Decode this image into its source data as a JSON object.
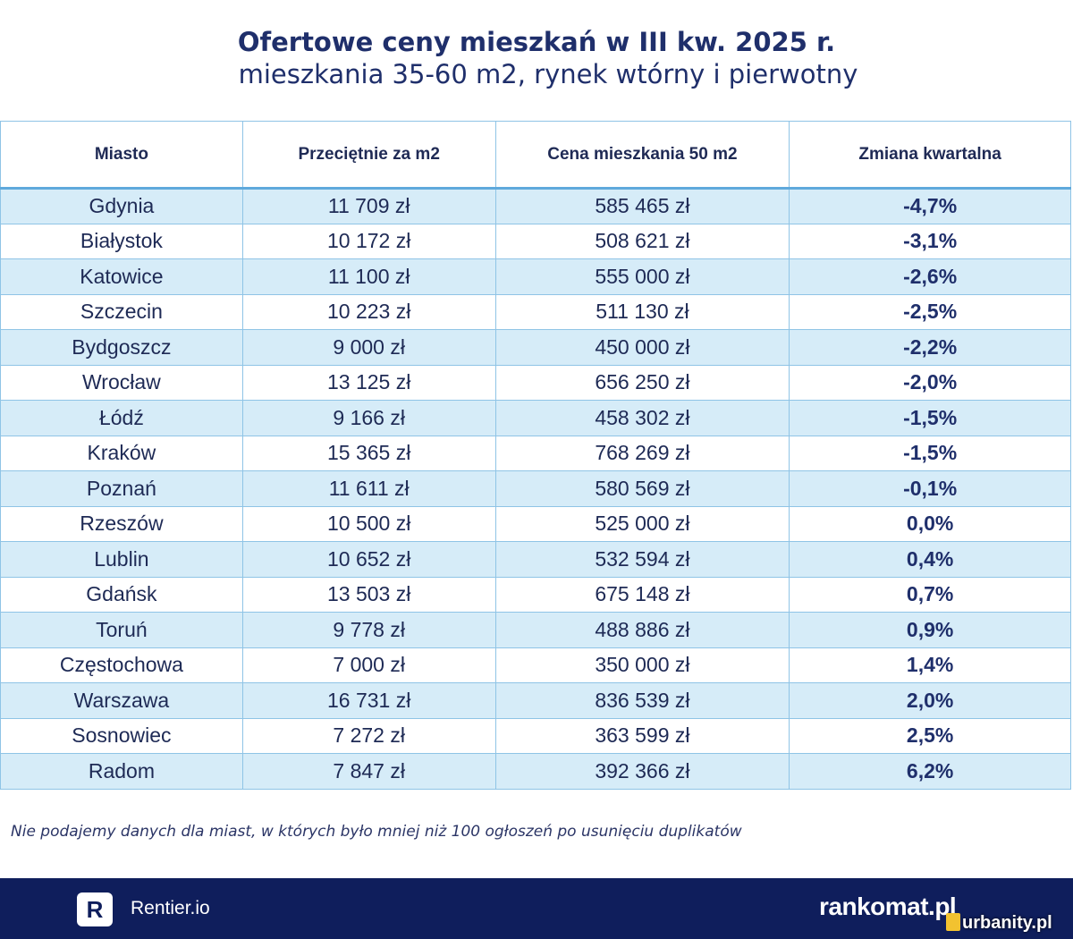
{
  "chart_data": {
    "type": "table",
    "title": "Ofertowe ceny mieszkań w III kw. 2025 r.",
    "subtitle": "mieszkania 35-60 m2, rynek wtórny i pierwotny",
    "columns": [
      "Miasto",
      "Przeciętnie za m2",
      "Cena mieszkania 50 m2",
      "Zmiana kwartalna"
    ],
    "rows": [
      [
        "Gdynia",
        "11 709 zł",
        "585 465 zł",
        "-4,7%"
      ],
      [
        "Białystok",
        "10 172 zł",
        "508 621 zł",
        "-3,1%"
      ],
      [
        "Katowice",
        "11 100 zł",
        "555 000 zł",
        "-2,6%"
      ],
      [
        "Szczecin",
        "10 223 zł",
        "511 130 zł",
        "-2,5%"
      ],
      [
        "Bydgoszcz",
        "9 000 zł",
        "450 000 zł",
        "-2,2%"
      ],
      [
        "Wrocław",
        "13 125 zł",
        "656 250 zł",
        "-2,0%"
      ],
      [
        "Łódź",
        "9 166 zł",
        "458 302 zł",
        "-1,5%"
      ],
      [
        "Kraków",
        "15 365 zł",
        "768 269 zł",
        "-1,5%"
      ],
      [
        "Poznań",
        "11 611 zł",
        "580 569 zł",
        "-0,1%"
      ],
      [
        "Rzeszów",
        "10 500 zł",
        "525 000 zł",
        "0,0%"
      ],
      [
        "Lublin",
        "10 652 zł",
        "532 594 zł",
        "0,4%"
      ],
      [
        "Gdańsk",
        "13 503 zł",
        "675 148 zł",
        "0,7%"
      ],
      [
        "Toruń",
        "9 778 zł",
        "488 886 zł",
        "0,9%"
      ],
      [
        "Częstochowa",
        "7 000 zł",
        "350 000 zł",
        "1,4%"
      ],
      [
        "Warszawa",
        "16 731 zł",
        "836 539 zł",
        "2,0%"
      ],
      [
        "Sosnowiec",
        "7 272 zł",
        "363 599 zł",
        "2,5%"
      ],
      [
        "Radom",
        "7 847 zł",
        "392 366 zł",
        "6,2%"
      ]
    ],
    "note": "Nie podajemy danych dla miast, w których było mniej niż 100 ogłoszeń po usunięciu duplikatów"
  },
  "footer": {
    "rentier_badge": "R",
    "rentier_label": "Rentier.io",
    "rankomat_label": "rankomat.pl",
    "urbanity_label": "urbanity.pl"
  },
  "colors": {
    "navy": "#0f1e5c",
    "row_stripe": "#d6ecf8",
    "border": "#8fc4e6"
  }
}
